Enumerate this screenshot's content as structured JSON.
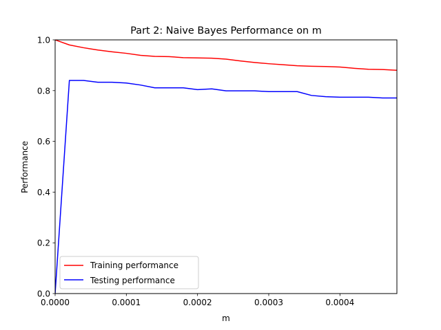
{
  "chart_data": {
    "type": "line",
    "title": "Part 2: Naive Bayes Performance on m",
    "xlabel": "m",
    "ylabel": "Performance",
    "xlim": [
      0,
      0.00048
    ],
    "ylim": [
      0,
      1.0
    ],
    "xticks": [
      0,
      0.0001,
      0.0002,
      0.0003,
      0.0004
    ],
    "xtick_labels": [
      "0.0000",
      "0.0001",
      "0.0002",
      "0.0003",
      "0.0004"
    ],
    "yticks": [
      0,
      0.2,
      0.4,
      0.6,
      0.8,
      1.0
    ],
    "ytick_labels": [
      "0.0",
      "0.2",
      "0.4",
      "0.6",
      "0.8",
      "1.0"
    ],
    "grid": false,
    "legend_position": "lower-left",
    "x": [
      0,
      2e-05,
      4e-05,
      6e-05,
      8e-05,
      0.0001,
      0.00012,
      0.00014,
      0.00016,
      0.00018,
      0.0002,
      0.00022,
      0.00024,
      0.00026,
      0.00028,
      0.0003,
      0.00032,
      0.00034,
      0.00036,
      0.00038,
      0.0004,
      0.00042,
      0.00044,
      0.00046,
      0.00048
    ],
    "series": [
      {
        "name": "Training performance",
        "color": "#ff0000",
        "values": [
          1.0,
          0.98,
          0.969,
          0.96,
          0.953,
          0.947,
          0.939,
          0.935,
          0.934,
          0.93,
          0.929,
          0.928,
          0.924,
          0.917,
          0.911,
          0.906,
          0.902,
          0.898,
          0.896,
          0.895,
          0.893,
          0.888,
          0.884,
          0.883,
          0.88
        ]
      },
      {
        "name": "Testing performance",
        "color": "#0000ff",
        "values": [
          0.0,
          0.84,
          0.84,
          0.833,
          0.833,
          0.83,
          0.822,
          0.811,
          0.811,
          0.811,
          0.804,
          0.807,
          0.799,
          0.799,
          0.799,
          0.796,
          0.796,
          0.796,
          0.781,
          0.776,
          0.774,
          0.774,
          0.774,
          0.771,
          0.771
        ]
      }
    ]
  }
}
